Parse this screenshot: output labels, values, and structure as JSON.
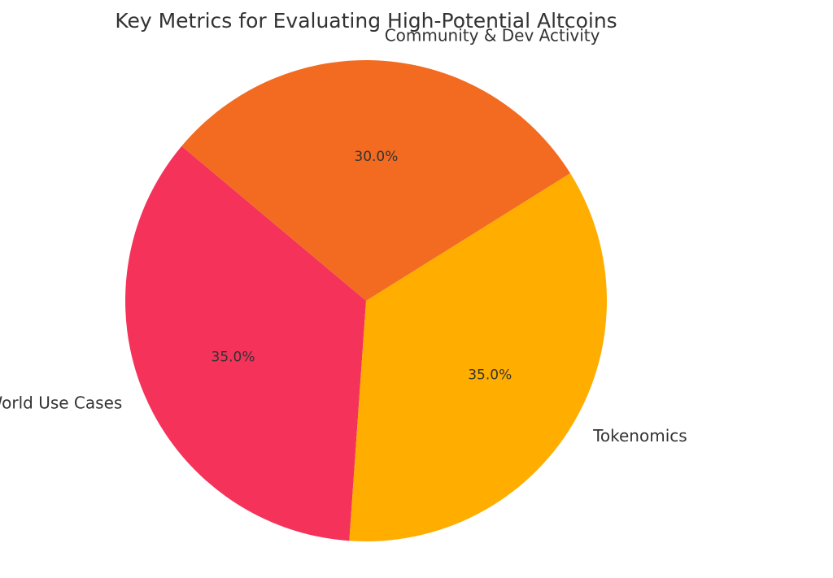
{
  "chart_data": {
    "type": "pie",
    "title": "Key Metrics for Evaluating High-Potential Altcoins",
    "categories": [
      "Real-World Use Cases",
      "Tokenomics",
      "Community & Dev Activity"
    ],
    "values": [
      35.0,
      35.0,
      30.0
    ],
    "value_labels": [
      "35.0%",
      "35.0%",
      "30.0%"
    ],
    "colors": [
      "#f5325a",
      "#ffae00",
      "#f26b21"
    ],
    "start_angle_deg": 140,
    "direction": "counterclockwise",
    "legend": "none"
  }
}
